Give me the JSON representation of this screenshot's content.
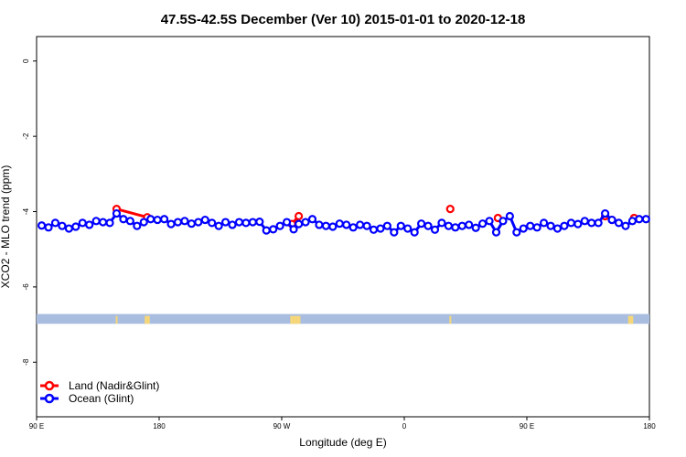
{
  "chart_data": {
    "type": "line",
    "title": "47.5S-42.5S December (Ver 10)   2015-01-01 to 2020-12-18",
    "xlabel": "Longitude (deg E)",
    "ylabel": "XCO2 - MLO trend (ppm)",
    "xlim": [
      90,
      450
    ],
    "ylim": [
      -9.45,
      0.65
    ],
    "x_ticks": [
      {
        "value": 90,
        "label": "90 E"
      },
      {
        "value": 162,
        "label": "180"
      },
      {
        "value": 234,
        "label": "90 W"
      },
      {
        "value": 306,
        "label": "0"
      },
      {
        "value": 378,
        "label": "90 E"
      },
      {
        "value": 450,
        "label": "180"
      }
    ],
    "y_ticks": [
      {
        "value": 0,
        "label": "0"
      },
      {
        "value": -2,
        "label": "-2"
      },
      {
        "value": -4,
        "label": "-4"
      },
      {
        "value": -6,
        "label": "-6"
      },
      {
        "value": -8,
        "label": "-8"
      }
    ],
    "legend_position": "bottom-left",
    "series": [
      {
        "name": "Land (Nadir&Glint)",
        "color": "#ff0000",
        "x": [
          137,
          155,
          240,
          244,
          333,
          361,
          424,
          428,
          441
        ],
        "y": [
          -3.93,
          -4.15,
          -4.33,
          -4.12,
          -3.93,
          -4.17,
          -4.12,
          -4.22,
          -4.17
        ],
        "segments": [
          [
            0,
            1
          ],
          [
            2,
            3
          ]
        ]
      },
      {
        "name": "Ocean (Glint)",
        "color": "#0000ff",
        "x": [
          93,
          97,
          101,
          105,
          109,
          113,
          117,
          121,
          125,
          129,
          133,
          137,
          141,
          145,
          149,
          153,
          157,
          161,
          165,
          169,
          173,
          177,
          181,
          185,
          189,
          193,
          197,
          201,
          205,
          209,
          213,
          217,
          221,
          225,
          229,
          233,
          237,
          241,
          244,
          248,
          252,
          256,
          260,
          264,
          268,
          272,
          276,
          280,
          284,
          288,
          292,
          296,
          300,
          304,
          308,
          312,
          316,
          320,
          324,
          328,
          332,
          336,
          340,
          344,
          348,
          352,
          356,
          360,
          364,
          368,
          372,
          376,
          380,
          384,
          388,
          392,
          396,
          400,
          404,
          408,
          412,
          416,
          420,
          424,
          428,
          432,
          436,
          440,
          444,
          448
        ],
        "y": [
          -4.37,
          -4.42,
          -4.3,
          -4.38,
          -4.45,
          -4.4,
          -4.3,
          -4.35,
          -4.25,
          -4.28,
          -4.3,
          -4.05,
          -4.2,
          -4.25,
          -4.38,
          -4.28,
          -4.2,
          -4.22,
          -4.2,
          -4.33,
          -4.28,
          -4.25,
          -4.32,
          -4.28,
          -4.22,
          -4.3,
          -4.38,
          -4.28,
          -4.35,
          -4.28,
          -4.3,
          -4.28,
          -4.27,
          -4.5,
          -4.47,
          -4.38,
          -4.28,
          -4.47,
          -4.33,
          -4.28,
          -4.2,
          -4.35,
          -4.38,
          -4.4,
          -4.32,
          -4.35,
          -4.42,
          -4.35,
          -4.38,
          -4.48,
          -4.45,
          -4.38,
          -4.55,
          -4.38,
          -4.45,
          -4.55,
          -4.32,
          -4.38,
          -4.48,
          -4.3,
          -4.38,
          -4.42,
          -4.38,
          -4.35,
          -4.43,
          -4.32,
          -4.25,
          -4.55,
          -4.25,
          -4.12,
          -4.55,
          -4.45,
          -4.38,
          -4.42,
          -4.3,
          -4.38,
          -4.45,
          -4.38,
          -4.3,
          -4.33,
          -4.25,
          -4.3,
          -4.3,
          -4.05,
          -4.22,
          -4.3,
          -4.38,
          -4.25,
          -4.2,
          -4.2
        ]
      }
    ],
    "band": {
      "y_from": -6.72,
      "y_to": -6.98,
      "color": "#a8bddf",
      "highlight_color": "#f5d77a",
      "highlights": [
        {
          "x": 137,
          "width": 1
        },
        {
          "x": 155,
          "width": 3
        },
        {
          "x": 242,
          "width": 6
        },
        {
          "x": 333,
          "width": 1
        },
        {
          "x": 439,
          "width": 3
        }
      ]
    }
  }
}
